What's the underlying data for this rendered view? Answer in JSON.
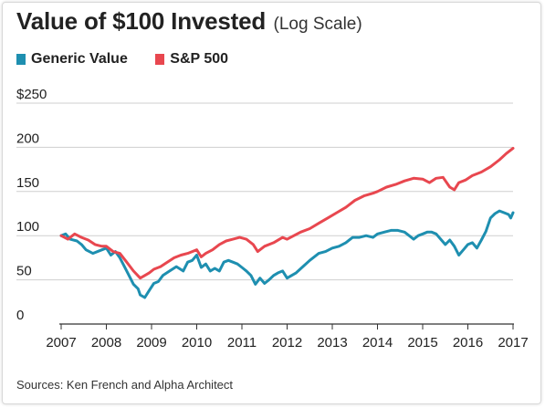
{
  "title": "Value of $100 Invested",
  "subtitle": "(Log Scale)",
  "source": "Sources: Ken French and Alpha Architect",
  "chart_data": {
    "type": "line",
    "title": "Value of $100 Invested",
    "subtitle": "(Log Scale)",
    "xlabel": "",
    "ylabel": "",
    "xlim": [
      2007,
      2017
    ],
    "ylim": [
      0,
      250
    ],
    "x_ticks": [
      2007,
      2008,
      2009,
      2010,
      2011,
      2012,
      2013,
      2014,
      2015,
      2016,
      2017
    ],
    "x_tick_labels": [
      "2007",
      "2008",
      "2009",
      "2010",
      "2011",
      "2012",
      "2013",
      "2014",
      "2015",
      "2016",
      "2017"
    ],
    "y_ticks": [
      0,
      50,
      100,
      150,
      200,
      250
    ],
    "y_tick_labels": [
      "0",
      "50",
      "100",
      "150",
      "200",
      "$250"
    ],
    "grid": "horizontal",
    "legend_position": "top-left",
    "series": [
      {
        "name": "Generic Value",
        "color": "#1e8fb0",
        "x": [
          2007.0,
          2007.1,
          2007.2,
          2007.35,
          2007.45,
          2007.55,
          2007.7,
          2007.85,
          2008.0,
          2008.1,
          2008.2,
          2008.3,
          2008.4,
          2008.5,
          2008.6,
          2008.7,
          2008.75,
          2008.85,
          2008.95,
          2009.05,
          2009.15,
          2009.25,
          2009.4,
          2009.55,
          2009.7,
          2009.8,
          2009.9,
          2010.0,
          2010.1,
          2010.2,
          2010.3,
          2010.4,
          2010.5,
          2010.6,
          2010.7,
          2010.8,
          2010.9,
          2011.0,
          2011.1,
          2011.2,
          2011.3,
          2011.4,
          2011.5,
          2011.6,
          2011.7,
          2011.8,
          2011.9,
          2012.0,
          2012.1,
          2012.2,
          2012.35,
          2012.5,
          2012.7,
          2012.85,
          2013.0,
          2013.15,
          2013.3,
          2013.45,
          2013.6,
          2013.75,
          2013.9,
          2014.0,
          2014.15,
          2014.3,
          2014.45,
          2014.6,
          2014.7,
          2014.8,
          2014.9,
          2015.0,
          2015.1,
          2015.2,
          2015.3,
          2015.4,
          2015.5,
          2015.6,
          2015.7,
          2015.8,
          2015.9,
          2016.0,
          2016.1,
          2016.2,
          2016.3,
          2016.4,
          2016.5,
          2016.6,
          2016.7,
          2016.8,
          2016.9,
          2016.95,
          2017.0
        ],
        "values": [
          100,
          102,
          96,
          94,
          90,
          84,
          80,
          83,
          86,
          78,
          82,
          75,
          65,
          55,
          45,
          40,
          33,
          30,
          38,
          46,
          48,
          55,
          60,
          65,
          60,
          70,
          72,
          78,
          64,
          68,
          60,
          63,
          60,
          70,
          72,
          70,
          68,
          64,
          60,
          55,
          45,
          52,
          46,
          50,
          55,
          58,
          60,
          52,
          55,
          58,
          65,
          72,
          80,
          82,
          86,
          88,
          92,
          98,
          98,
          100,
          98,
          102,
          104,
          106,
          106,
          104,
          100,
          96,
          100,
          102,
          104,
          104,
          102,
          96,
          90,
          95,
          88,
          78,
          84,
          90,
          92,
          86,
          95,
          105,
          120,
          125,
          128,
          126,
          124,
          120,
          126
        ]
      },
      {
        "name": "S&P 500",
        "color": "#e8474f",
        "x": [
          2007.0,
          2007.15,
          2007.3,
          2007.45,
          2007.6,
          2007.75,
          2007.9,
          2008.0,
          2008.15,
          2008.3,
          2008.45,
          2008.6,
          2008.75,
          2008.85,
          2008.95,
          2009.05,
          2009.2,
          2009.35,
          2009.5,
          2009.65,
          2009.8,
          2009.9,
          2010.0,
          2010.1,
          2010.2,
          2010.35,
          2010.5,
          2010.65,
          2010.8,
          2010.95,
          2011.1,
          2011.25,
          2011.35,
          2011.5,
          2011.7,
          2011.9,
          2012.0,
          2012.15,
          2012.3,
          2012.5,
          2012.7,
          2012.9,
          2013.1,
          2013.3,
          2013.5,
          2013.7,
          2013.9,
          2014.0,
          2014.2,
          2014.4,
          2014.6,
          2014.8,
          2015.0,
          2015.15,
          2015.3,
          2015.45,
          2015.6,
          2015.7,
          2015.8,
          2015.95,
          2016.1,
          2016.3,
          2016.5,
          2016.7,
          2016.85,
          2017.0
        ],
        "values": [
          100,
          96,
          102,
          98,
          95,
          90,
          88,
          88,
          82,
          80,
          70,
          60,
          52,
          55,
          58,
          62,
          65,
          70,
          75,
          78,
          80,
          82,
          84,
          76,
          80,
          84,
          90,
          94,
          96,
          98,
          96,
          90,
          82,
          88,
          92,
          98,
          96,
          100,
          104,
          108,
          114,
          120,
          126,
          132,
          140,
          145,
          148,
          150,
          155,
          158,
          162,
          165,
          164,
          160,
          165,
          166,
          155,
          152,
          160,
          163,
          168,
          172,
          178,
          186,
          193,
          199
        ]
      }
    ]
  }
}
